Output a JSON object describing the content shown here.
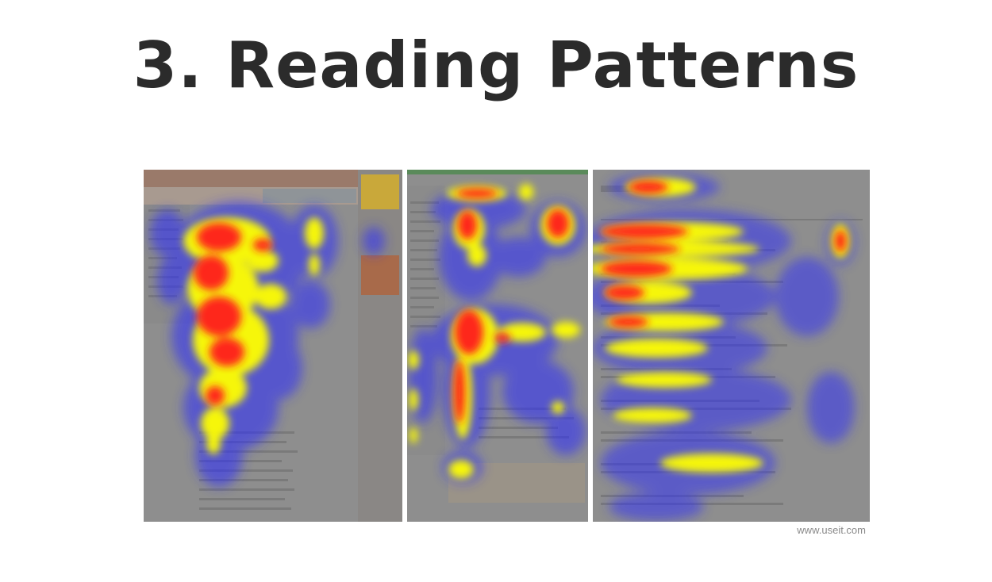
{
  "title": "3. Reading Patterns",
  "credit": "www.useit.com",
  "panels": [
    {
      "name": "company-page-heatmap",
      "heat_colors": [
        "#2a2cff",
        "#ffff00",
        "#ff1a1a"
      ]
    },
    {
      "name": "product-page-heatmap",
      "heat_colors": [
        "#2a2cff",
        "#ffff00",
        "#ff1a1a"
      ]
    },
    {
      "name": "search-results-heatmap",
      "heat_colors": [
        "#2a2cff",
        "#ffff00",
        "#ff1a1a"
      ]
    }
  ]
}
